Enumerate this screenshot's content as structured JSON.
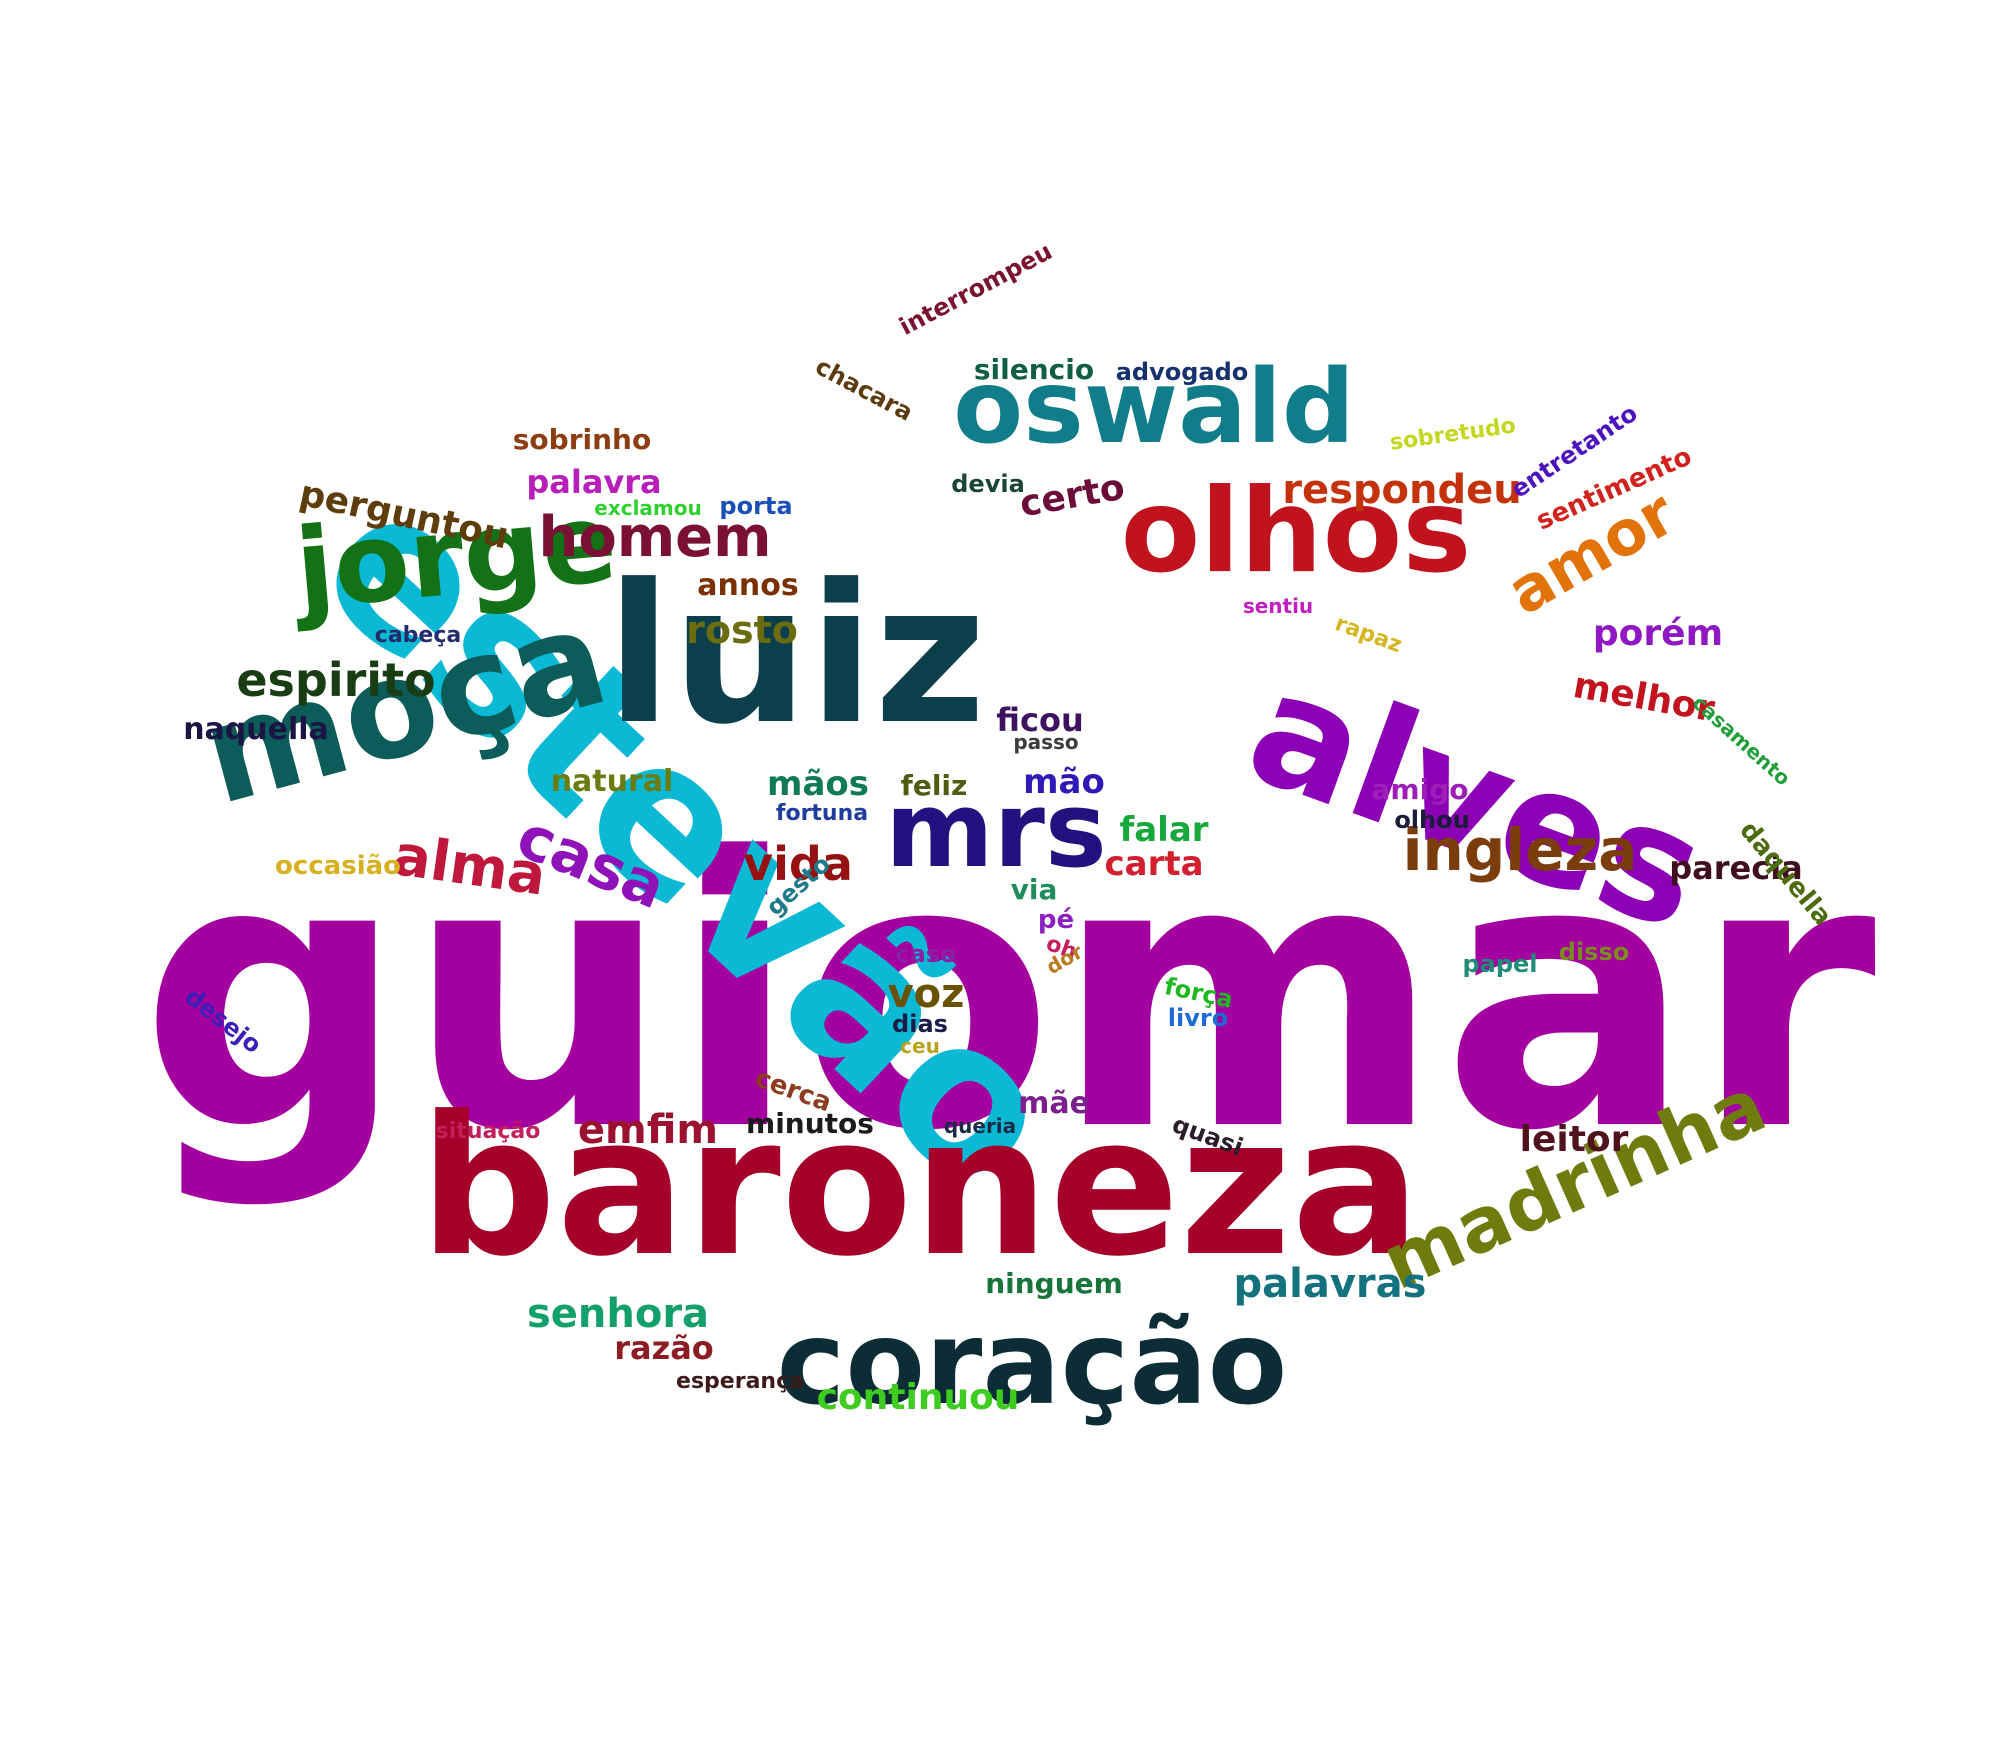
{
  "words": [
    {
      "text": "guiomar",
      "color": "#a4009f"
    },
    {
      "text": "estevão",
      "color": "#0cb9d5"
    },
    {
      "text": "baroneza",
      "color": "#a50029"
    },
    {
      "text": "luiz",
      "color": "#0b3f4b"
    },
    {
      "text": "alves",
      "color": "#8c00b6"
    },
    {
      "text": "coração",
      "color": "#0d2d36"
    },
    {
      "text": "olhos",
      "color": "#c0131e"
    },
    {
      "text": "moça",
      "color": "#0c5c59"
    },
    {
      "text": "oswald",
      "color": "#117d8a"
    },
    {
      "text": "jorge",
      "color": "#137215"
    },
    {
      "text": "madrinha",
      "color": "#6f7c0d"
    },
    {
      "text": "mrs",
      "color": "#251080"
    },
    {
      "text": "homem",
      "color": "#7a1033"
    },
    {
      "text": "ingleza",
      "color": "#7b3d0c"
    },
    {
      "text": "casa",
      "color": "#8e12b8"
    },
    {
      "text": "alma",
      "color": "#c0183c"
    },
    {
      "text": "amor",
      "color": "#e2720a"
    },
    {
      "text": "espirito",
      "color": "#193d12"
    },
    {
      "text": "vida",
      "color": "#961212"
    },
    {
      "text": "respondeu",
      "color": "#c4320c"
    },
    {
      "text": "emfim",
      "color": "#9b1231"
    },
    {
      "text": "palavras",
      "color": "#14727e"
    },
    {
      "text": "senhora",
      "color": "#13a06b"
    },
    {
      "text": "rosto",
      "color": "#6b6b10"
    },
    {
      "text": "voz",
      "color": "#6b5200"
    },
    {
      "text": "certo",
      "color": "#6b0c3a"
    },
    {
      "text": "perguntou",
      "color": "#5c3d0b"
    },
    {
      "text": "porém",
      "color": "#8f18c2"
    },
    {
      "text": "melhor",
      "color": "#c2131e"
    },
    {
      "text": "leitor",
      "color": "#50131e"
    },
    {
      "text": "continuou",
      "color": "#3dcc1f"
    },
    {
      "text": "razão",
      "color": "#8c1d22"
    },
    {
      "text": "mãos",
      "color": "#0f7a54"
    },
    {
      "text": "mão",
      "color": "#2f1ab8"
    },
    {
      "text": "silencio",
      "color": "#0f5e45"
    },
    {
      "text": "palavra",
      "color": "#b81fb8"
    },
    {
      "text": "annos",
      "color": "#7a3000"
    },
    {
      "text": "ficou",
      "color": "#3f1260"
    },
    {
      "text": "falar",
      "color": "#16a83b"
    },
    {
      "text": "carta",
      "color": "#d11f2e"
    },
    {
      "text": "parecia",
      "color": "#3f0f20"
    },
    {
      "text": "naquella",
      "color": "#1b1545"
    },
    {
      "text": "natural",
      "color": "#6b7d10"
    },
    {
      "text": "sobrinho",
      "color": "#8c3d12"
    },
    {
      "text": "ninguem",
      "color": "#17753a"
    },
    {
      "text": "minutos",
      "color": "#1b1b1b"
    },
    {
      "text": "sentimento",
      "color": "#d1221d"
    },
    {
      "text": "entretanto",
      "color": "#4d12bd"
    },
    {
      "text": "interrompeu",
      "color": "#7a1230"
    },
    {
      "text": "chacara",
      "color": "#5c3a10"
    },
    {
      "text": "advogado",
      "color": "#15326e"
    },
    {
      "text": "sobretudo",
      "color": "#c4d61f"
    },
    {
      "text": "exclamou",
      "color": "#2fd12f"
    },
    {
      "text": "porta",
      "color": "#1b4fb8"
    },
    {
      "text": "devia",
      "color": "#1b4537"
    },
    {
      "text": "cabeça",
      "color": "#222b6b"
    },
    {
      "text": "sentiu",
      "color": "#c21fc2"
    },
    {
      "text": "rapaz",
      "color": "#d6b61f"
    },
    {
      "text": "casamento",
      "color": "#1f9e3a"
    },
    {
      "text": "daquella",
      "color": "#4d6b0f"
    },
    {
      "text": "amigo",
      "color": "#9e1fb8"
    },
    {
      "text": "olhou",
      "color": "#1b1b3a"
    },
    {
      "text": "feliz",
      "color": "#4d5c0f"
    },
    {
      "text": "fortuna",
      "color": "#1f3d9e"
    },
    {
      "text": "passo",
      "color": "#3d3d3d"
    },
    {
      "text": "occasião",
      "color": "#d6b01f"
    },
    {
      "text": "gesto",
      "color": "#1f7a8c"
    },
    {
      "text": "via",
      "color": "#1f8c5c"
    },
    {
      "text": "pé",
      "color": "#8c1fc2"
    },
    {
      "text": "oh",
      "color": "#c21f5c"
    },
    {
      "text": "dor",
      "color": "#b87a1f"
    },
    {
      "text": "caso",
      "color": "#8c1fa3"
    },
    {
      "text": "dias",
      "color": "#1b1b45"
    },
    {
      "text": "ceu",
      "color": "#b8a31f"
    },
    {
      "text": "desejo",
      "color": "#3d1fb8"
    },
    {
      "text": "papel",
      "color": "#1f8c7a"
    },
    {
      "text": "disso",
      "color": "#7a8c1f"
    },
    {
      "text": "força",
      "color": "#1fb81f"
    },
    {
      "text": "livro",
      "color": "#1f6bd6"
    },
    {
      "text": "cerca",
      "color": "#8c3d1f"
    },
    {
      "text": "mãe",
      "color": "#7a1f8c"
    },
    {
      "text": "quasi",
      "color": "#2b1b2b"
    },
    {
      "text": "queria",
      "color": "#1b2b45"
    },
    {
      "text": "situação",
      "color": "#c21f5c"
    },
    {
      "text": "esperança",
      "color": "#3d1b1b"
    }
  ]
}
